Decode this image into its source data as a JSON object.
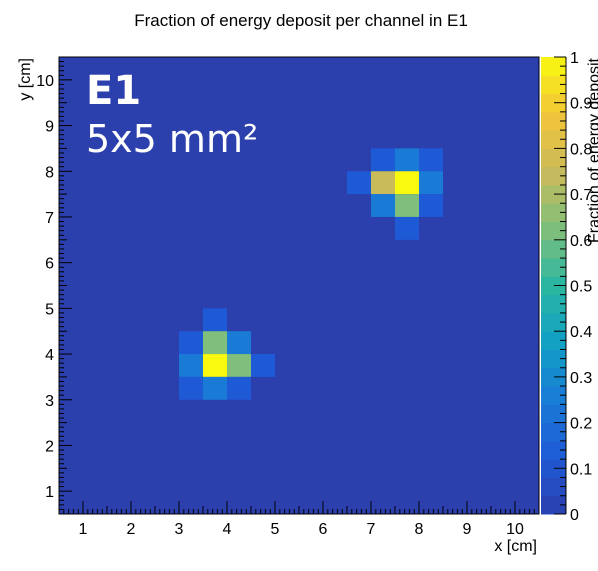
{
  "chart_data": {
    "type": "heatmap",
    "title": "Fraction of energy deposit per channel in E1",
    "xlabel": "x [cm]",
    "ylabel": "y [cm]",
    "zlabel": "Fraction of energy deposit",
    "xlim": [
      0.5,
      10.5
    ],
    "ylim": [
      0.5,
      10.5
    ],
    "zlim": [
      0,
      1
    ],
    "bin_width_cm": 0.5,
    "x_ticks": [
      "1",
      "2",
      "3",
      "4",
      "5",
      "6",
      "7",
      "8",
      "9",
      "10"
    ],
    "y_ticks": [
      "1",
      "2",
      "3",
      "4",
      "5",
      "6",
      "7",
      "8",
      "9",
      "10"
    ],
    "z_ticks": [
      "0",
      "0.1",
      "0.2",
      "0.3",
      "0.4",
      "0.5",
      "0.6",
      "0.7",
      "0.8",
      "0.9",
      "1"
    ],
    "background_value": 0,
    "cells": [
      {
        "x": 3.75,
        "y": 4.75,
        "z": 0.1
      },
      {
        "x": 3.25,
        "y": 4.25,
        "z": 0.18
      },
      {
        "x": 3.75,
        "y": 4.25,
        "z": 0.6
      },
      {
        "x": 4.25,
        "y": 4.25,
        "z": 0.25
      },
      {
        "x": 3.25,
        "y": 3.75,
        "z": 0.28
      },
      {
        "x": 3.75,
        "y": 3.75,
        "z": 1.0
      },
      {
        "x": 4.25,
        "y": 3.75,
        "z": 0.65
      },
      {
        "x": 4.75,
        "y": 3.75,
        "z": 0.12
      },
      {
        "x": 3.25,
        "y": 3.25,
        "z": 0.14
      },
      {
        "x": 3.75,
        "y": 3.25,
        "z": 0.25
      },
      {
        "x": 4.25,
        "y": 3.25,
        "z": 0.14
      },
      {
        "x": 7.25,
        "y": 8.25,
        "z": 0.18
      },
      {
        "x": 7.75,
        "y": 8.25,
        "z": 0.3
      },
      {
        "x": 8.25,
        "y": 8.25,
        "z": 0.14
      },
      {
        "x": 6.75,
        "y": 7.75,
        "z": 0.12
      },
      {
        "x": 7.25,
        "y": 7.75,
        "z": 0.72
      },
      {
        "x": 7.75,
        "y": 7.75,
        "z": 1.0
      },
      {
        "x": 8.25,
        "y": 7.75,
        "z": 0.3
      },
      {
        "x": 7.25,
        "y": 7.25,
        "z": 0.3
      },
      {
        "x": 7.75,
        "y": 7.25,
        "z": 0.65
      },
      {
        "x": 8.25,
        "y": 7.25,
        "z": 0.14
      },
      {
        "x": 7.75,
        "y": 6.75,
        "z": 0.12
      }
    ],
    "overlay_text": [
      "E1",
      "5x5 mm²"
    ],
    "palette": [
      "#2b3fad",
      "#1f5ad6",
      "#1a7bd6",
      "#12a0c4",
      "#2bb6a2",
      "#7fbf7b",
      "#c9bb5a",
      "#f3c53a",
      "#f9f90f"
    ],
    "grid": false
  }
}
